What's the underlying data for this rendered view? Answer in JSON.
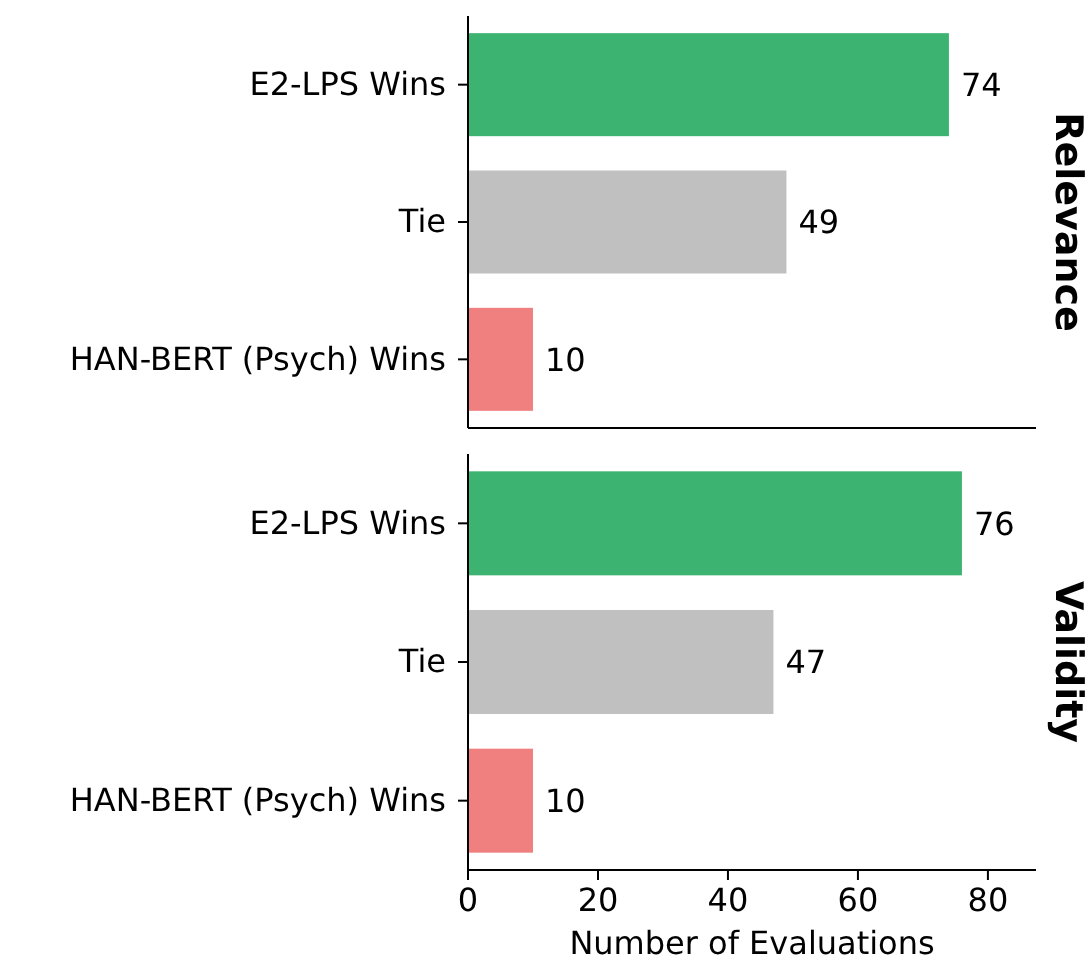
{
  "chart_data": [
    {
      "type": "bar",
      "orientation": "horizontal",
      "title": "Relevance",
      "categories": [
        "E2-LPS Wins",
        "Tie",
        "HAN-BERT (Psych) Wins"
      ],
      "values": [
        74,
        49,
        10
      ],
      "colors": [
        "#3cb371",
        "#c0c0c0",
        "#f08080"
      ],
      "xlim": [
        0,
        87.4
      ],
      "xticks": [
        0,
        20,
        40,
        60,
        80
      ],
      "data_labels": true,
      "tick_labels": "y"
    },
    {
      "type": "bar",
      "orientation": "horizontal",
      "title": "Validity",
      "xlabel": "Number of Evaluations",
      "categories": [
        "E2-LPS Wins",
        "Tie",
        "HAN-BERT (Psych) Wins"
      ],
      "values": [
        76,
        47,
        10
      ],
      "colors": [
        "#3cb371",
        "#c0c0c0",
        "#f08080"
      ],
      "xlim": [
        0,
        87.4
      ],
      "xticks": [
        0,
        20,
        40,
        60,
        80
      ],
      "data_labels": true
    }
  ]
}
